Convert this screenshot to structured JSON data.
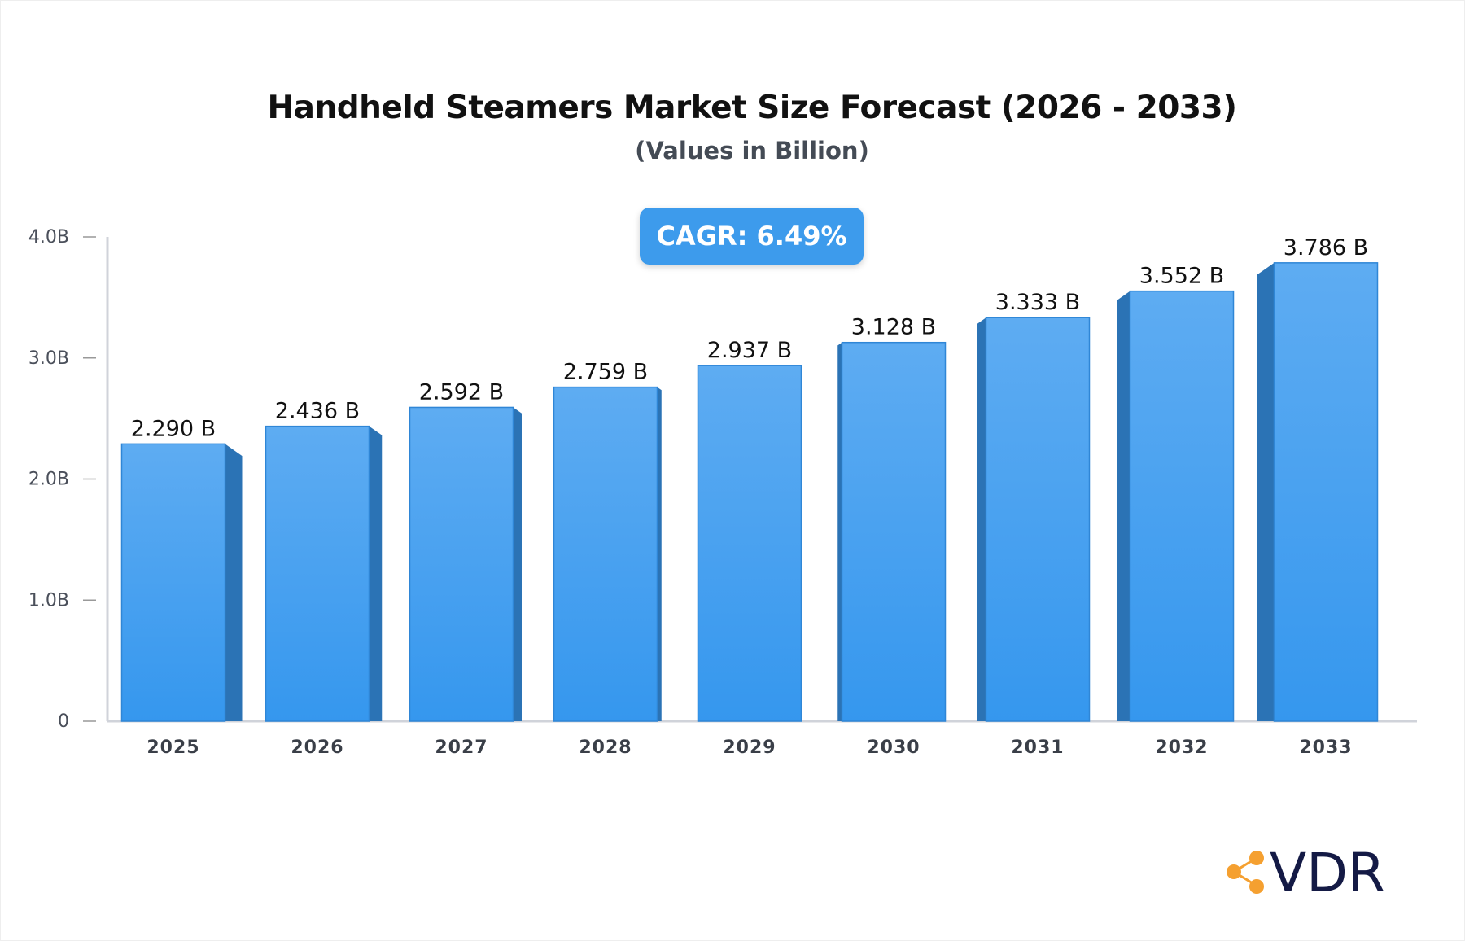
{
  "chart_data": {
    "type": "bar",
    "title": "Handheld Steamers Market Size Forecast (2026 - 2033)",
    "subtitle": "(Values in Billion)",
    "categories": [
      "2025",
      "2026",
      "2027",
      "2028",
      "2029",
      "2030",
      "2031",
      "2032",
      "2033"
    ],
    "values": [
      2.29,
      2.436,
      2.592,
      2.759,
      2.937,
      3.128,
      3.333,
      3.552,
      3.786
    ],
    "data_labels": [
      "2.290 B",
      "2.436 B",
      "2.592 B",
      "2.759 B",
      "2.937 B",
      "3.128 B",
      "3.333 B",
      "3.552 B",
      "3.786 B"
    ],
    "ylim": [
      0,
      4.0
    ],
    "yticks": [
      0,
      1.0,
      2.0,
      3.0,
      4.0
    ],
    "ytick_labels": [
      "0",
      "1.0B",
      "2.0B",
      "3.0B",
      "4.0B"
    ],
    "grid": false,
    "annotation": "CAGR: 6.49%",
    "colors": {
      "bar": "#3d9bec",
      "bar_side": "#2b73b5",
      "annotation_bg": "#3d9bec"
    }
  },
  "brand": {
    "logo_text": "VDR",
    "logo_color": "#141a45",
    "accent": "#f5a030"
  }
}
